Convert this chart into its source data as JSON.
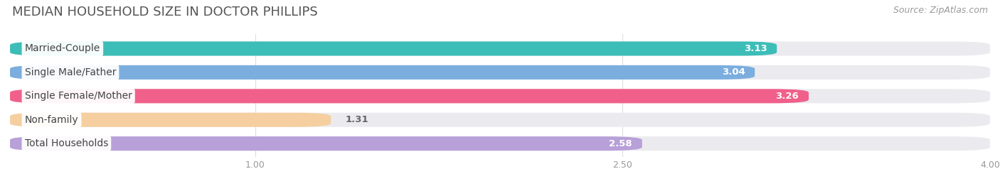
{
  "title": "MEDIAN HOUSEHOLD SIZE IN DOCTOR PHILLIPS",
  "source": "Source: ZipAtlas.com",
  "categories": [
    "Married-Couple",
    "Single Male/Father",
    "Single Female/Mother",
    "Non-family",
    "Total Households"
  ],
  "values": [
    3.13,
    3.04,
    3.26,
    1.31,
    2.58
  ],
  "bar_colors": [
    "#3DBDB8",
    "#7BAEDE",
    "#F0608A",
    "#F5CFA0",
    "#B8A0D8"
  ],
  "bar_bg_color": "#EBEBEF",
  "xlim_min": 0,
  "xlim_max": 4.0,
  "xticks": [
    1.0,
    2.5,
    4.0
  ],
  "xtick_labels": [
    "1.00",
    "2.50",
    "4.00"
  ],
  "value_label_color": "#FFFFFF",
  "value_label_color_short": "#666666",
  "short_threshold": 1.8,
  "title_fontsize": 13,
  "source_fontsize": 9,
  "label_fontsize": 10,
  "value_fontsize": 9.5,
  "tick_fontsize": 9,
  "background_color": "#FFFFFF",
  "grid_color": "#DDDDDD",
  "bar_height": 0.6,
  "bar_gap": 1.0
}
